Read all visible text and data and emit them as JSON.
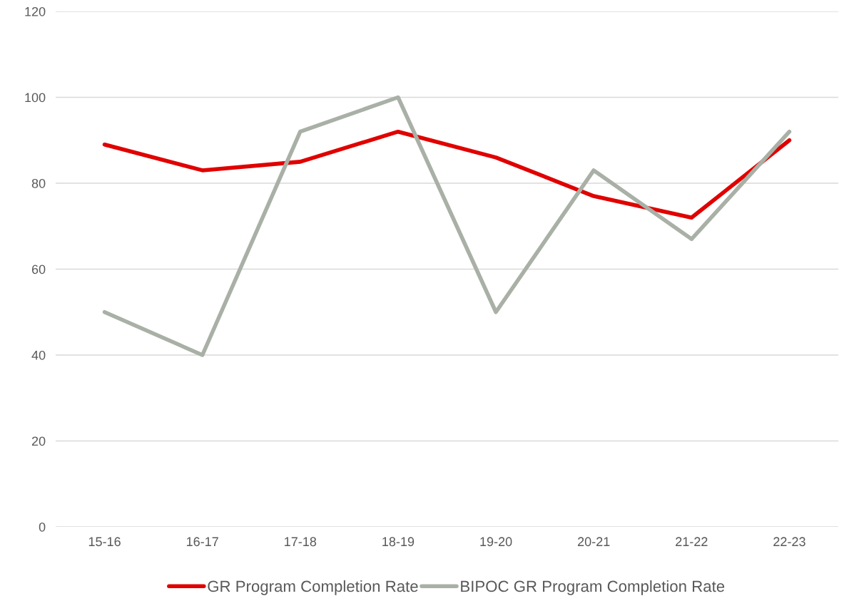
{
  "chart_data": {
    "type": "line",
    "categories": [
      "15-16",
      "16-17",
      "17-18",
      "18-19",
      "19-20",
      "20-21",
      "21-22",
      "22-23"
    ],
    "series": [
      {
        "name": "GR Program Completion Rate",
        "color": "#e00000",
        "values": [
          89,
          83,
          85,
          92,
          86,
          77,
          72,
          90
        ]
      },
      {
        "name": "BIPOC GR Program Completion Rate",
        "color": "#a9b0a6",
        "values": [
          50,
          40,
          92,
          100,
          50,
          83,
          67,
          92
        ]
      }
    ],
    "ylim": [
      0,
      120
    ],
    "yticks": [
      0,
      20,
      40,
      60,
      80,
      100,
      120
    ],
    "grid": "y",
    "legend": "bottom",
    "marker": "none",
    "line_style": "solid"
  }
}
